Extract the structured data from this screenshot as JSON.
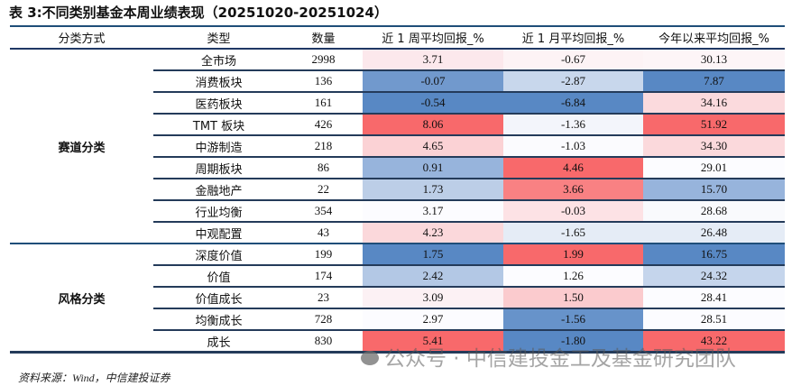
{
  "title": "表 3:不同类别基金本周业绩表现（20251020-20251024）",
  "headers": [
    "分类方式",
    "类型",
    "数量",
    "近 1 周平均回报_%",
    "近 1 月平均回报_%",
    "今年以来平均回报_%"
  ],
  "groups": [
    {
      "label": "赛道分类",
      "rowspan": 9
    },
    {
      "label": "风格分类",
      "rowspan": 5
    }
  ],
  "rows": [
    {
      "type": "全市场",
      "count": "2998",
      "w1": "3.71",
      "m1": "-0.67",
      "ytd": "30.13",
      "c1": "#fce8ec",
      "c2": "#fdf3f5",
      "c3": "#fdf5f7"
    },
    {
      "type": "消费板块",
      "count": "136",
      "w1": "-0.07",
      "m1": "-2.87",
      "ytd": "7.87",
      "c1": "#7199cd",
      "c2": "#c8d7ec",
      "c3": "#5888c4"
    },
    {
      "type": "医药板块",
      "count": "161",
      "w1": "-0.54",
      "m1": "-6.84",
      "ytd": "34.16",
      "c1": "#5888c4",
      "c2": "#5888c4",
      "c3": "#fbdadd"
    },
    {
      "type": "TMT 板块",
      "count": "426",
      "w1": "8.06",
      "m1": "-1.36",
      "ytd": "51.92",
      "c1": "#f8696b",
      "c2": "#f3f5fb",
      "c3": "#f8696b"
    },
    {
      "type": "中游制造",
      "count": "218",
      "w1": "4.65",
      "m1": "-1.03",
      "ytd": "34.30",
      "c1": "#fbd2d5",
      "c2": "#fbfbfe",
      "c3": "#fbd9dc"
    },
    {
      "type": "周期板块",
      "count": "86",
      "w1": "0.91",
      "m1": "4.46",
      "ytd": "29.01",
      "c1": "#97b4dc",
      "c2": "#f8696b",
      "c3": "#fcfcff"
    },
    {
      "type": "金融地产",
      "count": "22",
      "w1": "1.73",
      "m1": "3.66",
      "ytd": "15.70",
      "c1": "#bccee7",
      "c2": "#f98183",
      "c3": "#97b4dc"
    },
    {
      "type": "行业均衡",
      "count": "354",
      "w1": "3.17",
      "m1": "-0.03",
      "ytd": "28.68",
      "c1": "#fcfcff",
      "c2": "#fde2e5",
      "c3": "#f9fafd"
    },
    {
      "type": "中观配置",
      "count": "43",
      "w1": "4.23",
      "m1": "-1.65",
      "ytd": "26.48",
      "c1": "#fbd8db",
      "c2": "#e5ecf6",
      "c3": "#e5ecf6"
    },
    {
      "type": "深度价值",
      "count": "199",
      "w1": "1.75",
      "m1": "1.99",
      "ytd": "16.75",
      "c1": "#5888c4",
      "c2": "#f8696b",
      "c3": "#5888c4"
    },
    {
      "type": "价值",
      "count": "174",
      "w1": "2.42",
      "m1": "1.26",
      "ytd": "24.32",
      "c1": "#b3c8e5",
      "c2": "#fcfcff",
      "c3": "#c5d5ec"
    },
    {
      "type": "价值成长",
      "count": "23",
      "w1": "3.09",
      "m1": "1.50",
      "ytd": "28.41",
      "c1": "#fcf1f4",
      "c2": "#fbcbce",
      "c3": "#fcfcff"
    },
    {
      "type": "均衡成长",
      "count": "728",
      "w1": "2.97",
      "m1": "-1.56",
      "ytd": "28.51",
      "c1": "#fcfcff",
      "c2": "#6793ca",
      "c3": "#fcfcff"
    },
    {
      "type": "成长",
      "count": "830",
      "w1": "5.41",
      "m1": "-1.80",
      "ytd": "43.22",
      "c1": "#f8696b",
      "c2": "#5888c4",
      "c3": "#f8696b"
    }
  ],
  "source": "资料来源：Wind，中信建投证券",
  "watermark": "公众号 · 中信建投金工及基金研究团队"
}
